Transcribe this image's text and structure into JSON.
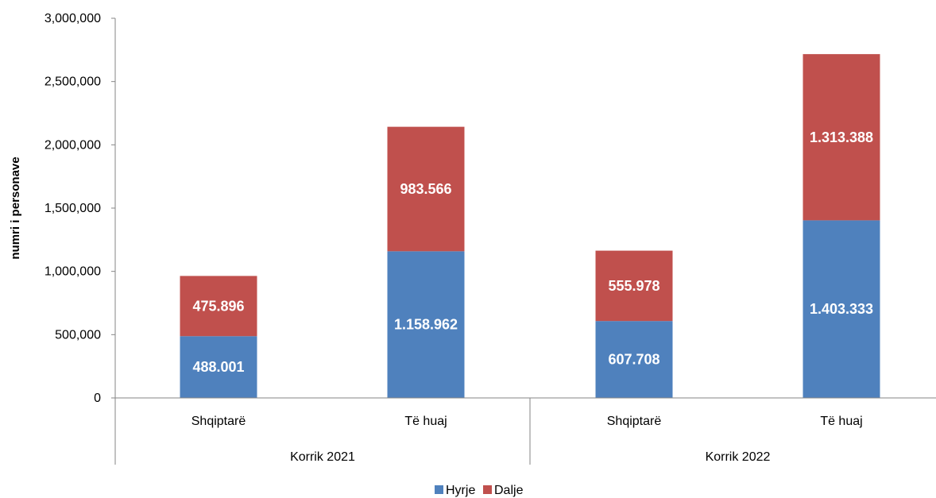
{
  "chart_data": {
    "type": "bar",
    "stacked": true,
    "ylabel": "numri i personave",
    "ylim": [
      0,
      3000000
    ],
    "y_ticks": [
      {
        "value": 0,
        "label": "0"
      },
      {
        "value": 500000,
        "label": "500,000"
      },
      {
        "value": 1000000,
        "label": "1,000,000"
      },
      {
        "value": 1500000,
        "label": "1,500,000"
      },
      {
        "value": 2000000,
        "label": "2,000,000"
      },
      {
        "value": 2500000,
        "label": "2,500,000"
      },
      {
        "value": 3000000,
        "label": "3,000,000"
      }
    ],
    "groups": [
      "Korrik 2021",
      "Korrik 2022"
    ],
    "categories": [
      "Shqiptarë",
      "Të huaj",
      "Shqiptarë",
      "Të huaj"
    ],
    "series": [
      {
        "name": "Hyrje",
        "color": "#4F81BD",
        "values": [
          488001,
          1158962,
          607708,
          1403333
        ],
        "labels": [
          "488.001",
          "1.158.962",
          "607.708",
          "1.403.333"
        ]
      },
      {
        "name": "Dalje",
        "color": "#C0504D",
        "values": [
          475896,
          983566,
          555978,
          1313388
        ],
        "labels": [
          "475.896",
          "983.566",
          "555.978",
          "1.313.388"
        ]
      }
    ],
    "grid": false,
    "legend": "bottom"
  }
}
